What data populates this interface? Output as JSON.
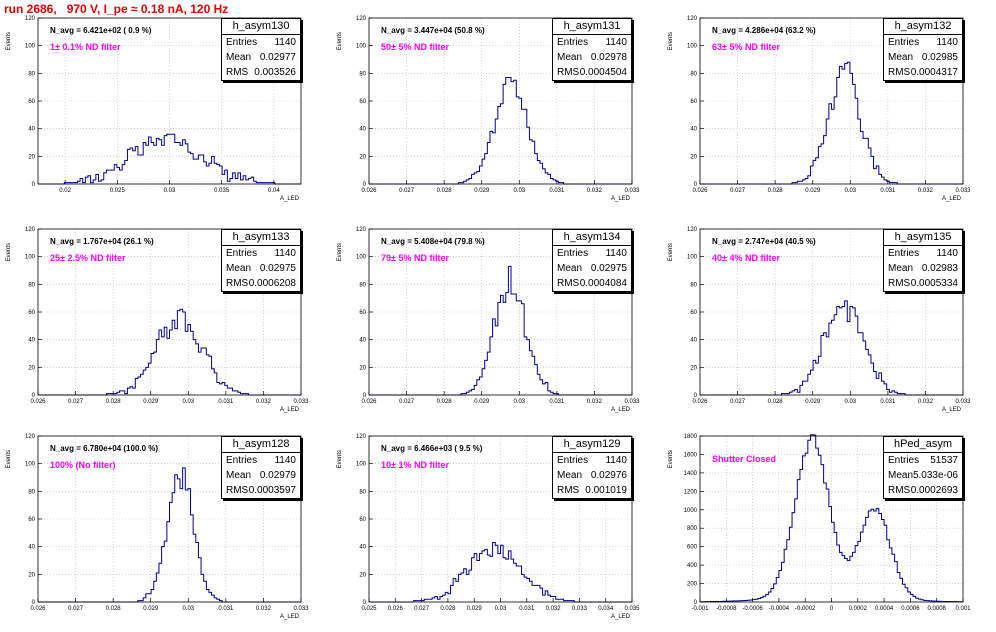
{
  "header": {
    "run_title": "run 2686,   970 V, I_pe ≈ 0.18 nA, 120 Hz"
  },
  "chart_data": [
    {
      "type": "histogram",
      "name": "h_asym130",
      "n_avg": "N_avg = 6.421e+02 ( 0.9 %)",
      "filter_label": "1± 0.1% ND filter",
      "stats": {
        "entries": "1140",
        "mean": "0.02977",
        "rms": "0.003526"
      },
      "xlim": [
        0.0174,
        0.0426
      ],
      "ylim": [
        0,
        120
      ],
      "xticks": [
        0.02,
        0.025,
        0.03,
        0.035,
        0.04
      ],
      "xtick_labels": [
        "0.02",
        "0.025",
        "0.03",
        "0.035",
        "0.04"
      ],
      "yticks": [
        0,
        20,
        40,
        60,
        80,
        100,
        120
      ],
      "ytick_labels": [
        "0",
        "20",
        "40",
        "60",
        "80",
        "100",
        "120"
      ],
      "ylabel": "Events",
      "xlabel": "A_LED",
      "mu": 0.02977,
      "sigma": 0.0035,
      "peak": 32,
      "bumps": true
    },
    {
      "type": "histogram",
      "name": "h_asym131",
      "n_avg": "N_avg = 3.447e+04 (50.8 %)",
      "filter_label": "50± 5% ND filter",
      "stats": {
        "entries": "1140",
        "mean": "0.02978",
        "rms": "0.0004504"
      },
      "xlim": [
        0.026,
        0.033
      ],
      "ylim": [
        0,
        120
      ],
      "xticks": [
        0.026,
        0.027,
        0.028,
        0.029,
        0.03,
        0.031,
        0.032,
        0.033
      ],
      "xtick_labels": [
        "0.026",
        "0.027",
        "0.028",
        "0.029",
        "0.03",
        "0.031",
        "0.032",
        "0.033"
      ],
      "yticks": [
        0,
        20,
        40,
        60,
        80,
        100,
        120
      ],
      "ytick_labels": [
        "0",
        "20",
        "40",
        "60",
        "80",
        "100",
        "120"
      ],
      "ylabel": "Events",
      "xlabel": "A_LED",
      "mu": 0.02978,
      "sigma": 0.00045,
      "peak": 72
    },
    {
      "type": "histogram",
      "name": "h_asym132",
      "n_avg": "N_avg = 4.286e+04 (63.2 %)",
      "filter_label": "63± 5% ND filter",
      "stats": {
        "entries": "1140",
        "mean": "0.02985",
        "rms": "0.0004317"
      },
      "xlim": [
        0.026,
        0.033
      ],
      "ylim": [
        0,
        120
      ],
      "xticks": [
        0.026,
        0.027,
        0.028,
        0.029,
        0.03,
        0.031,
        0.032,
        0.033
      ],
      "xtick_labels": [
        "0.026",
        "0.027",
        "0.028",
        "0.029",
        "0.03",
        "0.031",
        "0.032",
        "0.033"
      ],
      "yticks": [
        0,
        20,
        40,
        60,
        80,
        100,
        120
      ],
      "ytick_labels": [
        "0",
        "20",
        "40",
        "60",
        "80",
        "100",
        "120"
      ],
      "ylabel": "Events",
      "xlabel": "A_LED",
      "mu": 0.02985,
      "sigma": 0.00043,
      "peak": 82
    },
    {
      "type": "histogram",
      "name": "h_asym133",
      "n_avg": "N_avg = 1.767e+04 (26.1 %)",
      "filter_label": "25± 2.5% ND filter",
      "stats": {
        "entries": "1140",
        "mean": "0.02975",
        "rms": "0.0006208"
      },
      "xlim": [
        0.026,
        0.033
      ],
      "ylim": [
        0,
        120
      ],
      "xticks": [
        0.026,
        0.027,
        0.028,
        0.029,
        0.03,
        0.031,
        0.032,
        0.033
      ],
      "xtick_labels": [
        "0.026",
        "0.027",
        "0.028",
        "0.029",
        "0.03",
        "0.031",
        "0.032",
        "0.033"
      ],
      "yticks": [
        0,
        20,
        40,
        60,
        80,
        100,
        120
      ],
      "ytick_labels": [
        "0",
        "20",
        "40",
        "60",
        "80",
        "100",
        "120"
      ],
      "ylabel": "Events",
      "xlabel": "A_LED",
      "mu": 0.02975,
      "sigma": 0.00062,
      "peak": 56
    },
    {
      "type": "histogram",
      "name": "h_asym134",
      "n_avg": "N_avg = 5.408e+04 (79.8 %)",
      "filter_label": "79± 5% ND filter",
      "stats": {
        "entries": "1140",
        "mean": "0.02975",
        "rms": "0.0004084"
      },
      "xlim": [
        0.026,
        0.033
      ],
      "ylim": [
        0,
        120
      ],
      "xticks": [
        0.026,
        0.027,
        0.028,
        0.029,
        0.03,
        0.031,
        0.032,
        0.033
      ],
      "xtick_labels": [
        "0.026",
        "0.027",
        "0.028",
        "0.029",
        "0.03",
        "0.031",
        "0.032",
        "0.033"
      ],
      "yticks": [
        0,
        20,
        40,
        60,
        80,
        100,
        120
      ],
      "ytick_labels": [
        "0",
        "20",
        "40",
        "60",
        "80",
        "100",
        "120"
      ],
      "ylabel": "Events",
      "xlabel": "A_LED",
      "mu": 0.02975,
      "sigma": 0.00041,
      "peak": 84
    },
    {
      "type": "histogram",
      "name": "h_asym135",
      "n_avg": "N_avg = 2.747e+04 (40.5 %)",
      "filter_label": "40± 4% ND filter",
      "stats": {
        "entries": "1140",
        "mean": "0.02983",
        "rms": "0.0005334"
      },
      "xlim": [
        0.026,
        0.033
      ],
      "ylim": [
        0,
        120
      ],
      "xticks": [
        0.026,
        0.027,
        0.028,
        0.029,
        0.03,
        0.031,
        0.032,
        0.033
      ],
      "xtick_labels": [
        "0.026",
        "0.027",
        "0.028",
        "0.029",
        "0.03",
        "0.031",
        "0.032",
        "0.033"
      ],
      "yticks": [
        0,
        20,
        40,
        60,
        80,
        100,
        120
      ],
      "ytick_labels": [
        "0",
        "20",
        "40",
        "60",
        "80",
        "100",
        "120"
      ],
      "ylabel": "Events",
      "xlabel": "A_LED",
      "mu": 0.02983,
      "sigma": 0.00053,
      "peak": 66
    },
    {
      "type": "histogram",
      "name": "h_asym128",
      "n_avg": "N_avg = 6.780e+04 (100.0 %)",
      "filter_label": "100% (No filter)",
      "stats": {
        "entries": "1140",
        "mean": "0.02979",
        "rms": "0.0003597"
      },
      "xlim": [
        0.026,
        0.033
      ],
      "ylim": [
        0,
        120
      ],
      "xticks": [
        0.026,
        0.027,
        0.028,
        0.029,
        0.03,
        0.031,
        0.032,
        0.033
      ],
      "xtick_labels": [
        "0.026",
        "0.027",
        "0.028",
        "0.029",
        "0.03",
        "0.031",
        "0.032",
        "0.033"
      ],
      "yticks": [
        0,
        20,
        40,
        60,
        80,
        100,
        120
      ],
      "ytick_labels": [
        "0",
        "20",
        "40",
        "60",
        "80",
        "100",
        "120"
      ],
      "ylabel": "Events",
      "xlabel": "A_LED",
      "mu": 0.02979,
      "sigma": 0.00036,
      "peak": 88
    },
    {
      "type": "histogram",
      "name": "h_asym129",
      "n_avg": "N_avg = 6.466e+03 ( 9.5 %)",
      "filter_label": "10± 1% ND filter",
      "stats": {
        "entries": "1140",
        "mean": "0.02976",
        "rms": "0.001019"
      },
      "xlim": [
        0.025,
        0.035
      ],
      "ylim": [
        0,
        120
      ],
      "xticks": [
        0.025,
        0.026,
        0.027,
        0.028,
        0.029,
        0.03,
        0.031,
        0.032,
        0.033,
        0.034,
        0.035
      ],
      "xtick_labels": [
        "0.025",
        "0.026",
        "0.027",
        "0.028",
        "0.029",
        "0.03",
        "0.031",
        "0.032",
        "0.033",
        "0.034",
        "0.035"
      ],
      "yticks": [
        0,
        20,
        40,
        60,
        80,
        100,
        120
      ],
      "ytick_labels": [
        "0",
        "20",
        "40",
        "60",
        "80",
        "100",
        "120"
      ],
      "ylabel": "Events",
      "xlabel": "A_LED",
      "mu": 0.02976,
      "sigma": 0.00102,
      "peak": 40
    },
    {
      "type": "histogram",
      "name": "hPed_asym",
      "n_avg": "",
      "filter_label": "Shutter Closed",
      "stats": {
        "entries": "51537",
        "mean": "5.033e-06",
        "rms": "0.0002693"
      },
      "xlim": [
        -0.001,
        0.001
      ],
      "ylim": [
        0,
        1800
      ],
      "xticks": [
        -0.001,
        -0.0008,
        -0.0006,
        -0.0004,
        -0.0002,
        0,
        0.0002,
        0.0004,
        0.0006,
        0.0008,
        0.001
      ],
      "xtick_labels": [
        "-0.001",
        "-0.0008",
        "-0.0006",
        "-0.0004",
        "-0.0002",
        "0",
        "0.0002",
        "0.0004",
        "0.0006",
        "0.0008",
        "0.001"
      ],
      "yticks": [
        0,
        200,
        400,
        600,
        800,
        1000,
        1200,
        1400,
        1600,
        1800
      ],
      "ytick_labels": [
        "0",
        "200",
        "400",
        "600",
        "800",
        "1000",
        "1200",
        "1400",
        "1600",
        "1800"
      ],
      "ylabel": "Events",
      "xlabel": "",
      "bimodal": true,
      "components": [
        {
          "mu": -0.00015,
          "sigma": 0.00013,
          "peak": 1700
        },
        {
          "mu": 0.00033,
          "sigma": 0.00012,
          "peak": 950
        }
      ]
    }
  ]
}
